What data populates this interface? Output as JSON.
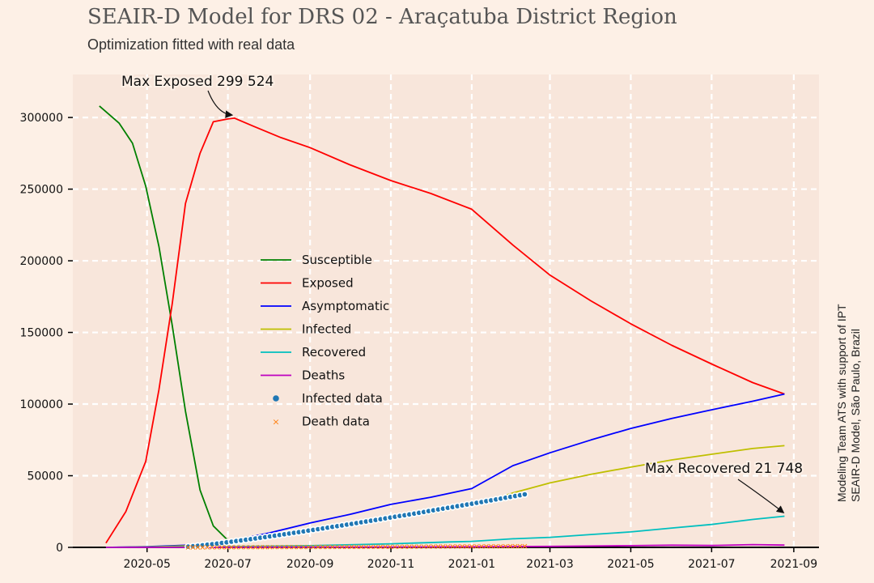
{
  "header": {
    "title": "SEAIR-D Model for DRS 02 - Araçatuba District Region",
    "subtitle": "Optimization fitted with real data"
  },
  "credit": {
    "line1": "Modeling Team ATS with support of IPT",
    "line2": "SEAIR-D Model, São Paulo, Brazil"
  },
  "chart_data": {
    "type": "line",
    "title": "SEAIR-D Model for DRS 02 - Araçatuba District Region",
    "subtitle": "Optimization fitted with real data",
    "xlabel": "",
    "ylabel": "",
    "x_type": "date",
    "xlim": [
      "2020-03-06",
      "2021-09-20"
    ],
    "ylim": [
      0,
      330000
    ],
    "grid": true,
    "legend_position": "center",
    "x_ticks": [
      "2020-05",
      "2020-07",
      "2020-09",
      "2020-11",
      "2021-01",
      "2021-03",
      "2021-05",
      "2021-07",
      "2021-09"
    ],
    "y_ticks": [
      0,
      50000,
      100000,
      150000,
      200000,
      250000,
      300000
    ],
    "series": [
      {
        "name": "Susceptible",
        "color": "#008000",
        "x": [
          "2020-03-26",
          "2020-04-10",
          "2020-04-20",
          "2020-04-30",
          "2020-05-10",
          "2020-05-20",
          "2020-05-30",
          "2020-06-10",
          "2020-06-20",
          "2020-07-02"
        ],
        "y": [
          308000,
          296000,
          282000,
          252000,
          210000,
          155000,
          95000,
          40000,
          15000,
          4000
        ]
      },
      {
        "name": "Exposed",
        "color": "#ff0000",
        "x": [
          "2020-03-31",
          "2020-04-15",
          "2020-04-30",
          "2020-05-10",
          "2020-05-20",
          "2020-05-30",
          "2020-06-10",
          "2020-06-20",
          "2020-07-01",
          "2020-07-06",
          "2020-07-20",
          "2020-08-10",
          "2020-09-01",
          "2020-10-01",
          "2020-11-01",
          "2020-12-01",
          "2021-01-01",
          "2021-02-01",
          "2021-03-01",
          "2021-04-01",
          "2021-05-01",
          "2021-06-01",
          "2021-07-01",
          "2021-08-01",
          "2021-08-25"
        ],
        "y": [
          3000,
          25000,
          60000,
          110000,
          170000,
          240000,
          275000,
          297000,
          299000,
          299524,
          294000,
          286000,
          279000,
          267000,
          256000,
          247000,
          236000,
          211000,
          190000,
          172000,
          156000,
          141000,
          128000,
          115000,
          107000
        ]
      },
      {
        "name": "Asymptomatic",
        "color": "#0000ff",
        "x": [
          "2020-03-31",
          "2020-05-01",
          "2020-06-01",
          "2020-07-01",
          "2020-08-01",
          "2020-09-01",
          "2020-10-01",
          "2020-11-01",
          "2020-12-01",
          "2021-01-01",
          "2021-02-01",
          "2021-03-01",
          "2021-04-01",
          "2021-05-01",
          "2021-06-01",
          "2021-07-01",
          "2021-08-01",
          "2021-08-25"
        ],
        "y": [
          0,
          500,
          1500,
          4000,
          10000,
          17000,
          23000,
          30000,
          35000,
          41000,
          57000,
          66000,
          75000,
          83000,
          90000,
          96000,
          102000,
          107000
        ]
      },
      {
        "name": "Infected",
        "color": "#bfbf00",
        "x": [
          "2020-03-31",
          "2020-05-01",
          "2020-06-01",
          "2020-07-01",
          "2020-08-01",
          "2020-09-01",
          "2020-10-01",
          "2020-11-01",
          "2020-12-01",
          "2021-01-01",
          "2021-02-01",
          "2021-03-01",
          "2021-04-01",
          "2021-05-01",
          "2021-06-01",
          "2021-07-01",
          "2021-08-01",
          "2021-08-25"
        ],
        "y": [
          0,
          300,
          1000,
          2500,
          7000,
          12000,
          16500,
          20000,
          24000,
          29000,
          38000,
          45000,
          51000,
          56000,
          61000,
          65000,
          69000,
          71000
        ]
      },
      {
        "name": "Recovered",
        "color": "#00bfbf",
        "x": [
          "2020-03-31",
          "2020-05-01",
          "2020-07-01",
          "2020-09-01",
          "2020-11-01",
          "2020-12-15",
          "2021-01-01",
          "2021-02-01",
          "2021-03-01",
          "2021-04-01",
          "2021-05-01",
          "2021-06-01",
          "2021-07-01",
          "2021-08-01",
          "2021-08-25"
        ],
        "y": [
          0,
          100,
          500,
          1200,
          2500,
          3800,
          4200,
          6000,
          7000,
          9000,
          10800,
          13500,
          16000,
          19500,
          21748
        ]
      },
      {
        "name": "Deaths",
        "color": "#bf00bf",
        "x": [
          "2020-03-31",
          "2020-07-01",
          "2020-11-01",
          "2021-01-01",
          "2021-03-01",
          "2021-05-01",
          "2021-06-01",
          "2021-07-01",
          "2021-08-01",
          "2021-08-25"
        ],
        "y": [
          0,
          80,
          250,
          400,
          700,
          1200,
          1500,
          1300,
          1900,
          1600
        ]
      }
    ],
    "scatter": [
      {
        "name": "Infected data",
        "color": "#1f77b4",
        "marker": "circle",
        "x_start": "2020-06-01",
        "x_end": "2021-02-10",
        "y_start": 500,
        "y_end": 37000
      },
      {
        "name": "Death data",
        "color": "#ff7f0e",
        "marker": "x",
        "x_start": "2020-06-01",
        "x_end": "2021-02-10",
        "y_start": 0,
        "y_end": 800
      }
    ],
    "annotations": [
      {
        "label": "Max Exposed",
        "value": "299 524",
        "x": "2020-07-06",
        "y": 299524
      },
      {
        "label": "Max Recovered",
        "value": "21 748",
        "x": "2021-08-25",
        "y": 21748
      }
    ]
  }
}
